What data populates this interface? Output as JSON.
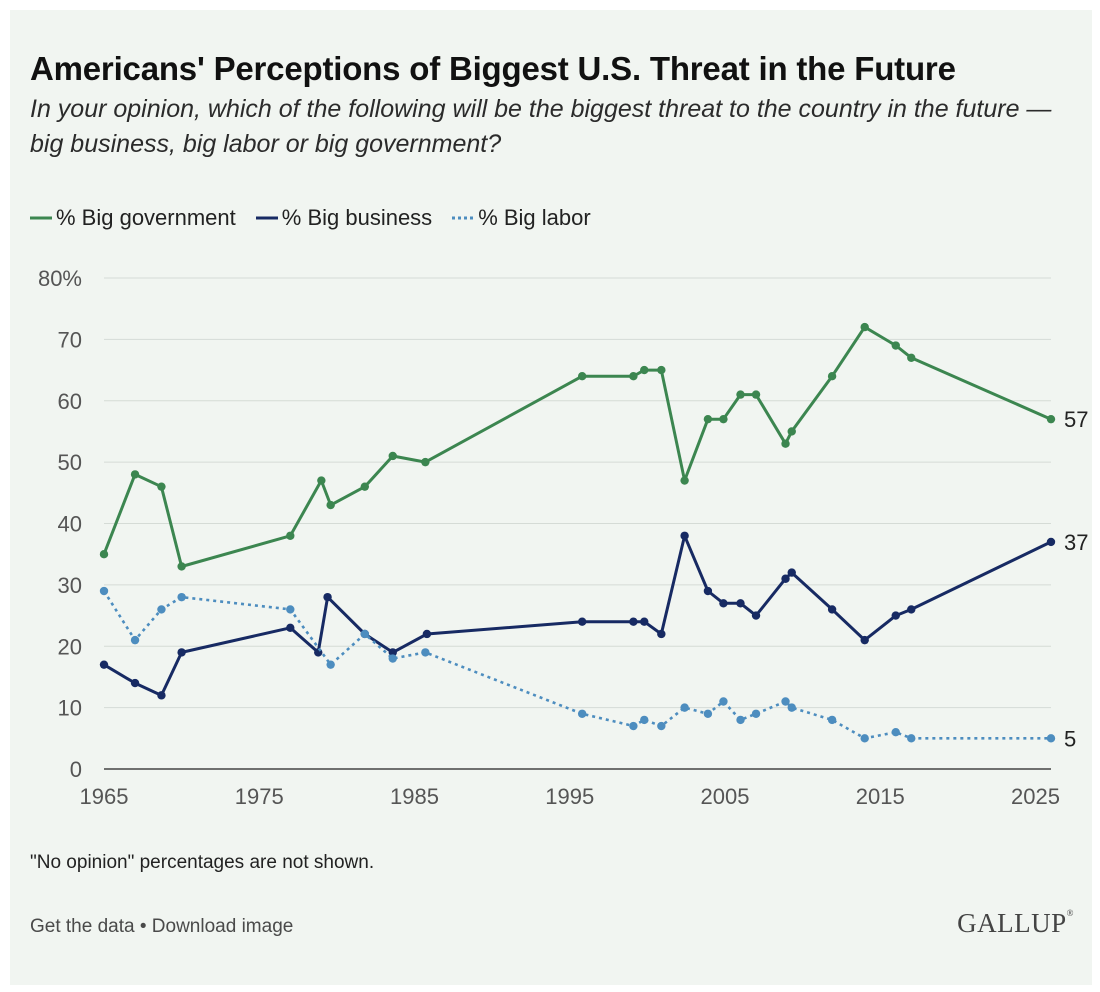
{
  "header": {
    "title": "Americans' Perceptions of Biggest U.S. Threat in the Future",
    "subtitle": "In your opinion, which of the following will be the biggest threat to the country in the future — big business, big labor or big government?"
  },
  "footer": {
    "note": "\"No opinion\" percentages are not shown.",
    "get_data": "Get the data",
    "separator": " • ",
    "download": "Download image",
    "brand": "GALLUP",
    "brand_mark": "®"
  },
  "chart_data": {
    "type": "line",
    "title": "Americans' Perceptions of Biggest U.S. Threat in the Future",
    "xlabel": "",
    "ylabel": "",
    "xlim": [
      1965,
      2026
    ],
    "ylim": [
      0,
      80
    ],
    "x_ticks": [
      1965,
      1975,
      1985,
      1995,
      2005,
      2015,
      2025
    ],
    "y_ticks": [
      0,
      10,
      20,
      30,
      40,
      50,
      60,
      70,
      80
    ],
    "y_tick_labels": [
      "0",
      "10",
      "20",
      "30",
      "40",
      "50",
      "60",
      "70",
      "80%"
    ],
    "grid": true,
    "legend_position": "top-left",
    "series": [
      {
        "name": "% Big government",
        "color": "#3c8650",
        "dash": "solid",
        "end_label": "57",
        "points": [
          [
            1965,
            35
          ],
          [
            1967,
            48
          ],
          [
            1968.7,
            46
          ],
          [
            1970,
            33
          ],
          [
            1977,
            38
          ],
          [
            1979,
            47
          ],
          [
            1979.6,
            43
          ],
          [
            1981.8,
            46
          ],
          [
            1983.6,
            51
          ],
          [
            1985.7,
            50
          ],
          [
            1995.8,
            64
          ],
          [
            1999.1,
            64
          ],
          [
            1999.8,
            65
          ],
          [
            2000.9,
            65
          ],
          [
            2002.4,
            47
          ],
          [
            2003.9,
            57
          ],
          [
            2004.9,
            57
          ],
          [
            2006,
            61
          ],
          [
            2007,
            61
          ],
          [
            2008.9,
            53
          ],
          [
            2009.3,
            55
          ],
          [
            2011.9,
            64
          ],
          [
            2014,
            72
          ],
          [
            2016,
            69
          ],
          [
            2017,
            67
          ],
          [
            2026,
            57
          ]
        ]
      },
      {
        "name": "% Big business",
        "color": "#172a63",
        "dash": "solid",
        "end_label": "37",
        "points": [
          [
            1965,
            17
          ],
          [
            1967,
            14
          ],
          [
            1968.7,
            12
          ],
          [
            1970,
            19
          ],
          [
            1977,
            23
          ],
          [
            1978.8,
            19
          ],
          [
            1979.4,
            28
          ],
          [
            1981.8,
            22
          ],
          [
            1983.6,
            19
          ],
          [
            1985.8,
            22
          ],
          [
            1995.8,
            24
          ],
          [
            1999.1,
            24
          ],
          [
            1999.8,
            24
          ],
          [
            2000.9,
            22
          ],
          [
            2002.4,
            38
          ],
          [
            2003.9,
            29
          ],
          [
            2004.9,
            27
          ],
          [
            2006,
            27
          ],
          [
            2007,
            25
          ],
          [
            2008.9,
            31
          ],
          [
            2009.3,
            32
          ],
          [
            2011.9,
            26
          ],
          [
            2014,
            21
          ],
          [
            2016,
            25
          ],
          [
            2017,
            26
          ],
          [
            2026,
            37
          ]
        ]
      },
      {
        "name": "% Big labor",
        "color": "#4d8dbf",
        "dash": "dotted",
        "end_label": "5",
        "points": [
          [
            1965,
            29
          ],
          [
            1967,
            21
          ],
          [
            1968.7,
            26
          ],
          [
            1970,
            28
          ],
          [
            1977,
            26
          ],
          [
            1979.6,
            17
          ],
          [
            1981.8,
            22
          ],
          [
            1983.6,
            18
          ],
          [
            1985.7,
            19
          ],
          [
            1995.8,
            9
          ],
          [
            1999.1,
            7
          ],
          [
            1999.8,
            8
          ],
          [
            2000.9,
            7
          ],
          [
            2002.4,
            10
          ],
          [
            2003.9,
            9
          ],
          [
            2004.9,
            11
          ],
          [
            2006,
            8
          ],
          [
            2007,
            9
          ],
          [
            2008.9,
            11
          ],
          [
            2009.3,
            10
          ],
          [
            2011.9,
            8
          ],
          [
            2014,
            5
          ],
          [
            2016,
            6
          ],
          [
            2017,
            5
          ],
          [
            2026,
            5
          ]
        ]
      }
    ]
  }
}
